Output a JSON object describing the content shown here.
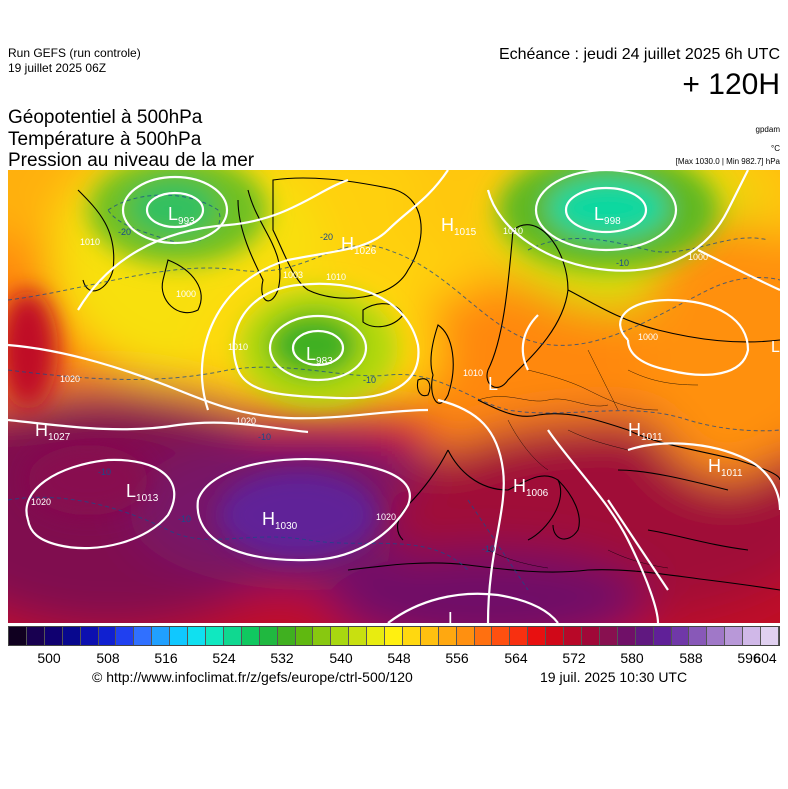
{
  "header": {
    "run_line1": "Run GEFS (run controle)",
    "run_line2": "19 juillet 2025 06Z",
    "echeance": "Echéance : jeudi 24 juillet 2025 6h UTC",
    "horizon": "+ 120H"
  },
  "titles": {
    "line1": "Géopotentiel à 500hPa",
    "line2": "Température à 500hPa",
    "line3": "Pression au niveau de la mer"
  },
  "units": {
    "geopotential": "gpdam",
    "temperature": "°C",
    "pressure": "[Max 1030.0 | Min 982.7] hPa"
  },
  "map": {
    "pressure_centers": [
      {
        "type": "L",
        "value": "993"
      },
      {
        "type": "L",
        "value": "998"
      },
      {
        "type": "H",
        "value": "1026"
      },
      {
        "type": "H",
        "value": "1015"
      },
      {
        "type": "L",
        "value": "983"
      },
      {
        "type": "H",
        "value": "1027"
      },
      {
        "type": "L",
        "value": "1013"
      },
      {
        "type": "H",
        "value": "1030"
      },
      {
        "type": "H",
        "value": "1011"
      },
      {
        "type": "H",
        "value": "1011"
      },
      {
        "type": "H",
        "value": "1006"
      },
      {
        "type": "L",
        "value": ""
      },
      {
        "type": "L",
        "value": ""
      }
    ],
    "isobar_labels": [
      "1010",
      "1000",
      "1003",
      "1010",
      "1010",
      "1000",
      "1020",
      "1020",
      "1010",
      "1010",
      "1000",
      "1020",
      "1020"
    ],
    "temperature_labels": [
      "-20",
      "-20",
      "-10",
      "-10",
      "-10",
      "-10",
      "-10",
      "-10"
    ]
  },
  "colorbar": {
    "colors": [
      "#100020",
      "#180050",
      "#100070",
      "#08088e",
      "#0c10b0",
      "#1020d0",
      "#2040f0",
      "#3070ff",
      "#20a0ff",
      "#10c8ff",
      "#10e0f0",
      "#10e8c0",
      "#10d890",
      "#10c860",
      "#20b840",
      "#40b020",
      "#60b810",
      "#88c810",
      "#a8d810",
      "#c8e010",
      "#e8ec10",
      "#fff010",
      "#ffd810",
      "#ffc010",
      "#ffa810",
      "#ff9010",
      "#ff7010",
      "#ff5010",
      "#f83010",
      "#e81010",
      "#d00818",
      "#b80828",
      "#a00838",
      "#881050",
      "#701068",
      "#601880",
      "#602098",
      "#7038a8",
      "#8858b8",
      "#a078c8",
      "#b898d8",
      "#d0b8e8",
      "#e0d0f0"
    ],
    "ticks": [
      "500",
      "508",
      "516",
      "524",
      "532",
      "540",
      "548",
      "556",
      "564",
      "572",
      "580",
      "588",
      "596",
      "604"
    ]
  },
  "footer": {
    "credit": "© http://www.infoclimat.fr/z/gefs/europe/ctrl-500/120",
    "stamp": "19 juil. 2025 10:30 UTC"
  }
}
